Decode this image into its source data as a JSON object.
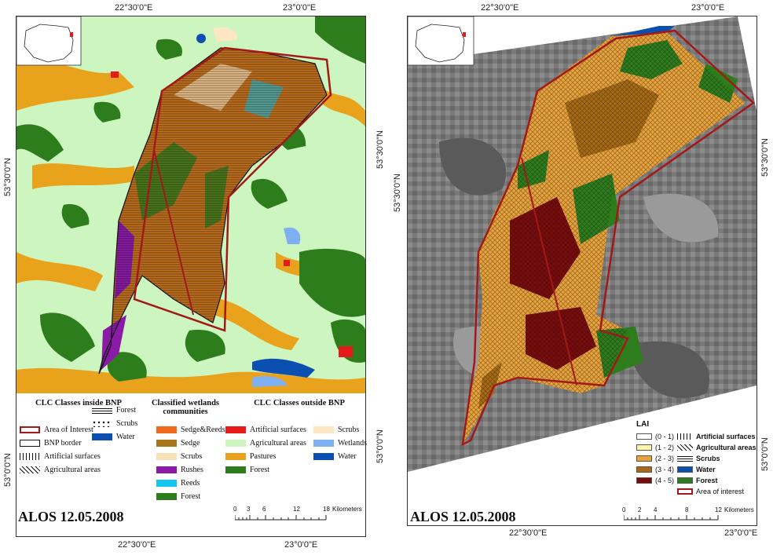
{
  "left": {
    "top_coords": [
      "22°30'0\"E",
      "23°0'0\"E"
    ],
    "bottom_coords": [
      "22°30'0\"E",
      "23°0'0\"E"
    ],
    "left_coords": [
      "53°30'0\"N",
      "53°0'0\"N"
    ],
    "right_coords": [
      "53°30'0\"N",
      "53°0'0\"N"
    ],
    "caption": "ALOS 12.05.2008",
    "legend": {
      "col1_title": "CLC Classes inside BNP",
      "col2_title": "Classified wetlands communities",
      "col3_title": "CLC Classes outside BNP",
      "col1_items": [
        "Area of Interest",
        "BNP border",
        "Artificial surfaces",
        "Agricultural areas"
      ],
      "col1b_items": [
        "Forest",
        "Scrubs",
        "Water"
      ],
      "col2_items": [
        "Sedge&Reeds",
        "Sedge",
        "Scrubs",
        "Rushes",
        "Reeds",
        "Forest"
      ],
      "col3_items": [
        "Artificial surfaces",
        "Agricultural areas",
        "Pastures",
        "Forest"
      ],
      "col4_items": [
        "Scrubs",
        "Wetlands",
        "Water"
      ]
    },
    "scale": {
      "ticks": [
        "0",
        "3",
        "6",
        "12",
        "18"
      ],
      "unit": "Kilometers"
    }
  },
  "right": {
    "top_coords": [
      "22°30'0\"E",
      "23°0'0\"E"
    ],
    "bottom_coords": [
      "22°30'0\"E",
      "23°0'0\"E"
    ],
    "left_coords": [
      "53°30'0\"N"
    ],
    "right_coords": [
      "53°30'0\"N",
      "53°0'0\"N"
    ],
    "caption": "ALOS 12.05.2008",
    "legend": {
      "title": "LAI",
      "classes": [
        "(0 - 1)",
        "(1 - 2)",
        "(2 - 3)",
        "(3 - 4)",
        "(4 - 5)"
      ],
      "class_colors": [
        "#ffffff",
        "#fff7b0",
        "#e8a23a",
        "#a86b14",
        "#7a0b0b"
      ],
      "symbols": [
        "Artificial surfaces",
        "Agricultural areas",
        "Scrubs",
        "Water",
        "Forest",
        "Area of interest"
      ]
    },
    "scale": {
      "ticks": [
        "0",
        "2",
        "4",
        "8",
        "12"
      ],
      "unit": "Kilometers"
    }
  },
  "colors": {
    "agri": "#cdf5bf",
    "forest": "#2e7d1c",
    "pastures": "#e8a21c",
    "artificial": "#e61a1a",
    "water": "#0b4fb0",
    "wetlands": "#7eaff0",
    "scrubs_out": "#fde6c2",
    "aoi": "#a31818",
    "sedge_reeds": "#f06a1e",
    "sedge": "#a8741c",
    "scrubs_in": "#f8e0b8",
    "rushes": "#8c1aa8",
    "reeds": "#12c6f0",
    "forest_in": "#2e7d1c"
  }
}
